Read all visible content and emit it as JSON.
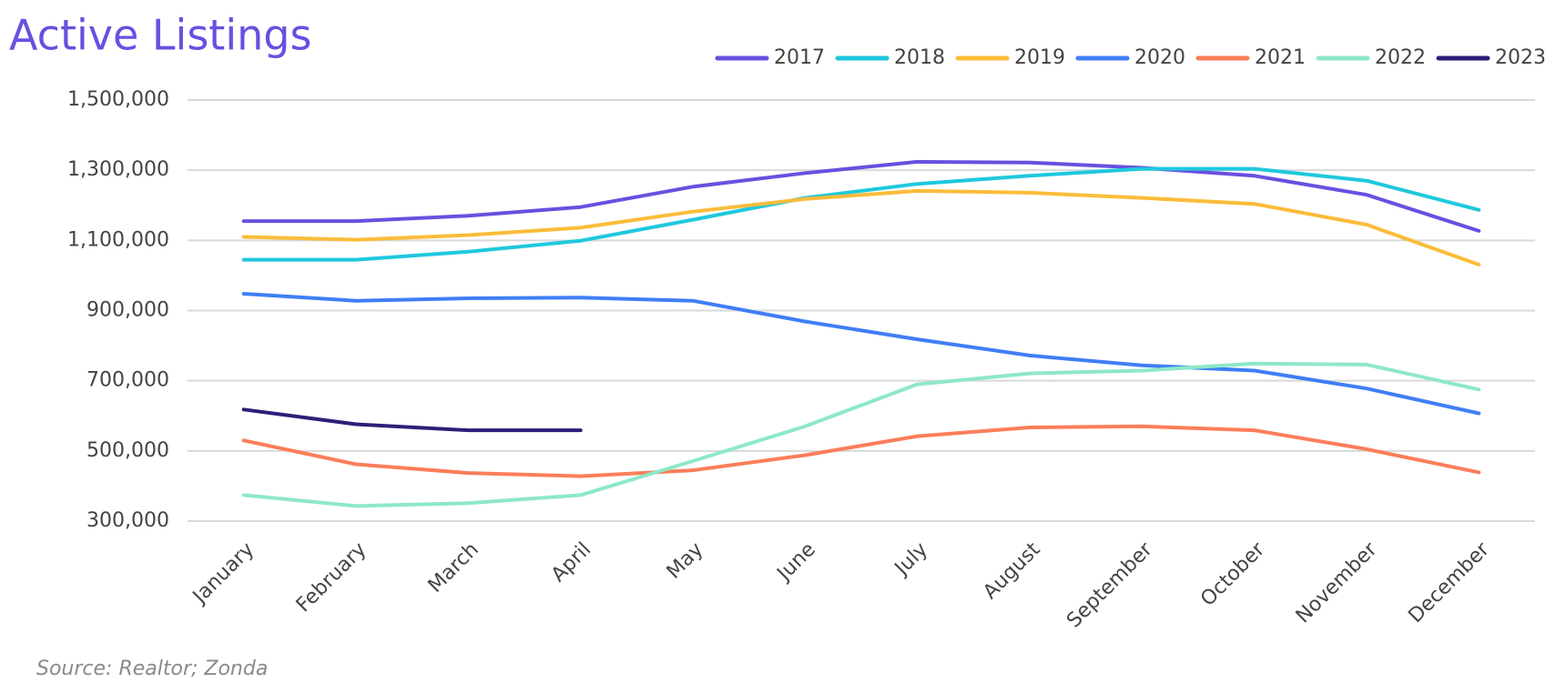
{
  "chart_data": {
    "type": "line",
    "title": "Active Listings",
    "source": "Source: Realtor; Zonda",
    "categories": [
      "January",
      "February",
      "March",
      "April",
      "May",
      "June",
      "July",
      "August",
      "September",
      "October",
      "November",
      "December"
    ],
    "series": [
      {
        "name": "2017",
        "color": "#6a4fe0",
        "values": [
          1155000,
          1155000,
          1170000,
          1195000,
          1253000,
          1292000,
          1324000,
          1322000,
          1307000,
          1284000,
          1230000,
          1127000
        ]
      },
      {
        "name": "2018",
        "color": "#1fc8dd",
        "values": [
          1045000,
          1045000,
          1068000,
          1099000,
          1159000,
          1221000,
          1261000,
          1284000,
          1304000,
          1304000,
          1270000,
          1187000
        ]
      },
      {
        "name": "2019",
        "color": "#fbbc3a",
        "values": [
          1110000,
          1102000,
          1115000,
          1136000,
          1182000,
          1218000,
          1241000,
          1236000,
          1221000,
          1204000,
          1145000,
          1031000
        ]
      },
      {
        "name": "2020",
        "color": "#3f7ef5",
        "values": [
          948000,
          928000,
          935000,
          937000,
          928000,
          869000,
          818000,
          772000,
          744000,
          729000,
          678000,
          607000
        ]
      },
      {
        "name": "2021",
        "color": "#fa7e5a",
        "values": [
          530000,
          462000,
          437000,
          428000,
          445000,
          488000,
          542000,
          567000,
          570000,
          559000,
          505000,
          439000
        ]
      },
      {
        "name": "2022",
        "color": "#8de8c8",
        "values": [
          374000,
          343000,
          351000,
          374000,
          471000,
          570000,
          690000,
          721000,
          729000,
          749000,
          746000,
          675000
        ]
      },
      {
        "name": "2023",
        "color": "#2b1f7a",
        "values": [
          618000,
          576000,
          559000,
          559000,
          null,
          null,
          null,
          null,
          null,
          null,
          null,
          null
        ]
      }
    ],
    "ylim": [
      300000,
      1500000
    ],
    "yticks": [
      {
        "value": 300000,
        "label": "300,000"
      },
      {
        "value": 500000,
        "label": "500,000"
      },
      {
        "value": 700000,
        "label": "700,000"
      },
      {
        "value": 900000,
        "label": "900,000"
      },
      {
        "value": 1100000,
        "label": "1,100,000"
      },
      {
        "value": 1300000,
        "label": "1,300,000"
      },
      {
        "value": 1500000,
        "label": "1,500,000"
      }
    ],
    "grid": true,
    "legend": "top-right"
  }
}
